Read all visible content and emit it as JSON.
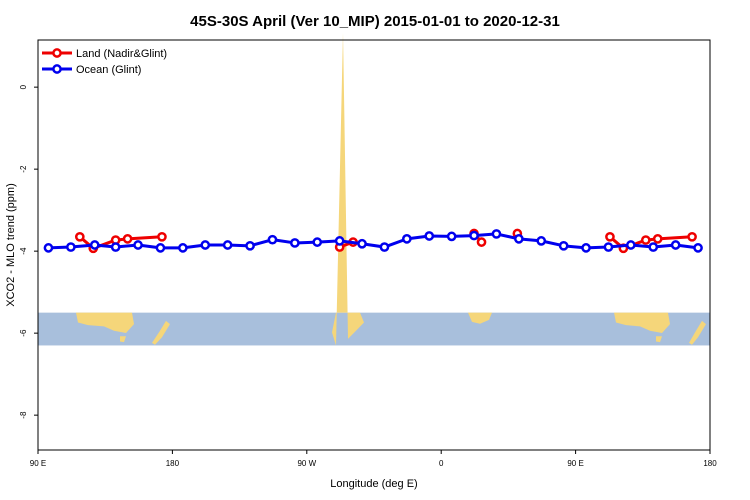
{
  "chart_data": {
    "type": "line",
    "title": "45S-30S April (Ver 10_MIP)   2015-01-01 to 2020-12-31",
    "xlabel": "Longitude (deg E)",
    "ylabel": "XCO2 - MLO trend (ppm)",
    "x_ticks": [
      {
        "value": 90,
        "label": "90 E"
      },
      {
        "value": 180,
        "label": "180"
      },
      {
        "value": 270,
        "label": "90 W"
      },
      {
        "value": 360,
        "label": "0"
      },
      {
        "value": 450,
        "label": "90 E"
      },
      {
        "value": 540,
        "label": "180"
      }
    ],
    "y_ticks": [
      {
        "value": 0,
        "label": "0"
      },
      {
        "value": -2,
        "label": "-2"
      },
      {
        "value": -4,
        "label": "-4"
      },
      {
        "value": -6,
        "label": "-6"
      },
      {
        "value": -8,
        "label": "-8"
      }
    ],
    "xlim": [
      90,
      540
    ],
    "ylim": [
      -8.85,
      1.15
    ],
    "legend_position": "top-left",
    "map_strip": {
      "y_top": -5.5,
      "y_bottom": -6.3,
      "ocean_color": "#a8bfdc",
      "land_color": "#f5d67a"
    },
    "series": [
      {
        "name": "Land (Nadir&Glint)",
        "color": "#ee0000",
        "segments": [
          [
            [
              118,
              -3.65
            ],
            [
              127,
              -3.93
            ],
            [
              142,
              -3.73
            ],
            [
              150,
              -3.7
            ],
            [
              173,
              -3.65
            ]
          ],
          [
            [
              292,
              -3.9
            ],
            [
              301,
              -3.78
            ]
          ],
          [
            [
              382,
              -3.57
            ],
            [
              387,
              -3.78
            ]
          ],
          [
            [
              411,
              -3.57
            ]
          ],
          [
            [
              473,
              -3.65
            ],
            [
              482,
              -3.93
            ],
            [
              497,
              -3.73
            ],
            [
              505,
              -3.7
            ],
            [
              528,
              -3.65
            ]
          ]
        ]
      },
      {
        "name": "Ocean (Glint)",
        "color": "#0000ee",
        "segments": [
          [
            [
              97,
              -3.92
            ],
            [
              112,
              -3.9
            ],
            [
              128,
              -3.85
            ],
            [
              142,
              -3.9
            ],
            [
              157,
              -3.85
            ],
            [
              172,
              -3.92
            ],
            [
              187,
              -3.92
            ],
            [
              202,
              -3.85
            ],
            [
              217,
              -3.85
            ],
            [
              232,
              -3.87
            ],
            [
              247,
              -3.72
            ],
            [
              262,
              -3.8
            ],
            [
              277,
              -3.78
            ],
            [
              292,
              -3.75
            ],
            [
              307,
              -3.82
            ],
            [
              322,
              -3.9
            ],
            [
              337,
              -3.7
            ],
            [
              352,
              -3.63
            ],
            [
              367,
              -3.64
            ],
            [
              382,
              -3.62
            ],
            [
              397,
              -3.58
            ],
            [
              412,
              -3.7
            ],
            [
              427,
              -3.75
            ],
            [
              442,
              -3.87
            ],
            [
              457,
              -3.92
            ],
            [
              472,
              -3.9
            ],
            [
              487,
              -3.85
            ],
            [
              502,
              -3.9
            ],
            [
              517,
              -3.85
            ],
            [
              532,
              -3.92
            ]
          ]
        ]
      }
    ]
  }
}
